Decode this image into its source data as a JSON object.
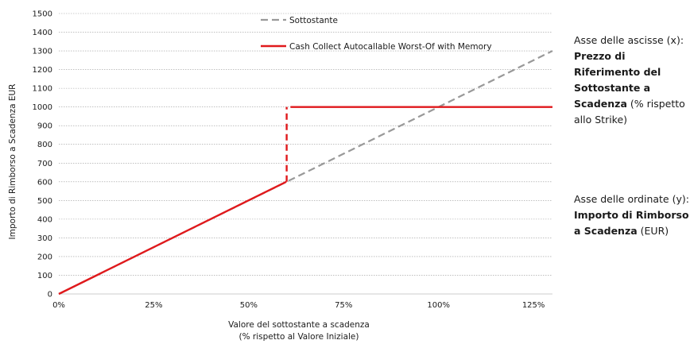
{
  "chart_data": {
    "type": "line",
    "x_unit": "% of initial value",
    "x_tick_labels": [
      "0%",
      "25%",
      "50%",
      "75%",
      "100%",
      "125%"
    ],
    "x_ticks": [
      0,
      25,
      50,
      75,
      100,
      125
    ],
    "xlim": [
      0,
      130
    ],
    "y_ticks": [
      0,
      100,
      200,
      300,
      400,
      500,
      600,
      700,
      800,
      900,
      1000,
      1100,
      1200,
      1300,
      1400,
      1500
    ],
    "ylim": [
      0,
      1500
    ],
    "xlabel_line1": "Valore del sottostante a scadenza",
    "xlabel_line2": "(% rispetto al Valore Iniziale)",
    "ylabel": "Importo di Rimborso a Scadenza EUR",
    "grid": "horizontal",
    "series": [
      {
        "name": "Sottostante",
        "color": "#999999",
        "style": "dashed",
        "x": [
          0,
          130
        ],
        "y": [
          0,
          1300
        ]
      },
      {
        "name": "Cash Collect Autocallable Worst-Of with Memory",
        "color": "#e0191c",
        "style": "solid",
        "x": [
          0,
          59.9
        ],
        "y": [
          0,
          600
        ]
      },
      {
        "name": "",
        "color": "#e0191c",
        "style": "dashed",
        "x": [
          60,
          60
        ],
        "y": [
          600,
          1000
        ]
      },
      {
        "name": "",
        "color": "#e0191c",
        "style": "solid",
        "x": [
          61,
          130
        ],
        "y": [
          1000,
          1000
        ]
      }
    ],
    "legend_position": "top-right inside"
  },
  "side_notes": {
    "x_prefix": "Asse delle  ascisse (x): ",
    "x_bold": "Prezzo di Riferimento del Sottostante a Scadenza",
    "x_suffix": " (% rispetto allo Strike)",
    "y_prefix": "Asse delle  ordinate (y): ",
    "y_bold": "Importo di Rimborso a Scadenza",
    "y_suffix": " (EUR)"
  }
}
